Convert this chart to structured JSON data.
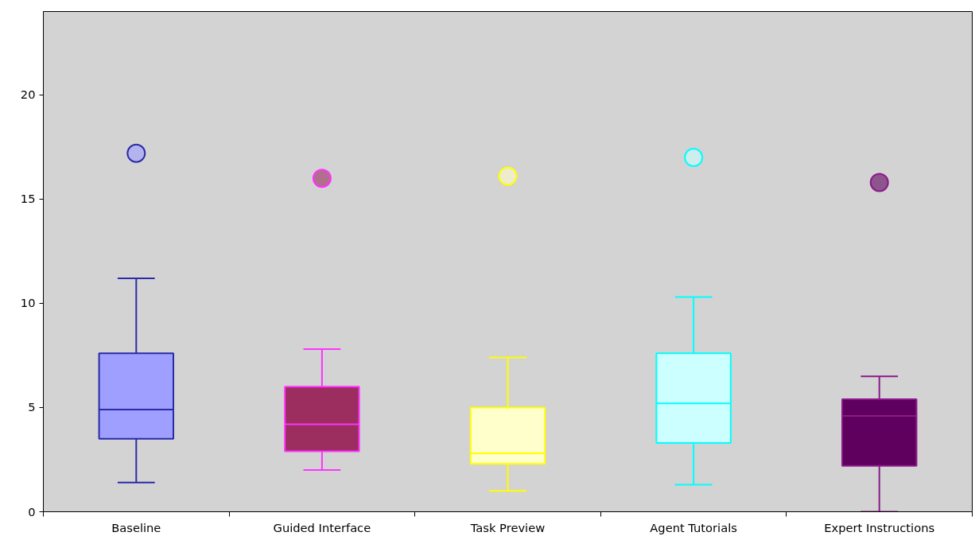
{
  "chart_data": {
    "type": "box",
    "categories": [
      "Baseline",
      "Guided Interface",
      "Task Preview",
      "Agent Tutorials",
      "Expert Instructions"
    ],
    "ylim": [
      0,
      24
    ],
    "yticks": [
      0,
      5,
      10,
      15,
      20
    ],
    "grid": false,
    "series": [
      {
        "color": "#2b2ba8",
        "colors": [
          "#9f9fff",
          null,
          null,
          null,
          null
        ],
        "boxes": [
          {
            "low": 1.4,
            "q1": 3.5,
            "median": 4.9,
            "q3": 7.6,
            "high": 11.2,
            "outliers": [
              17.2
            ]
          },
          null,
          null,
          null,
          null
        ]
      },
      {
        "color": "#ff33ff",
        "colors": [
          null,
          "#9b2d5f",
          null,
          null,
          null
        ],
        "boxes": [
          null,
          {
            "low": 2.0,
            "q1": 2.9,
            "median": 4.2,
            "q3": 6.0,
            "high": 7.8,
            "outliers": [
              16.0
            ]
          },
          null,
          null,
          null
        ]
      },
      {
        "color": "#ffff00",
        "colors": [
          null,
          null,
          "#ffffcc",
          null,
          null
        ],
        "boxes": [
          null,
          null,
          {
            "low": 1.0,
            "q1": 2.3,
            "median": 2.8,
            "q3": 5.0,
            "high": 7.4,
            "outliers": [
              16.1
            ]
          },
          null,
          null
        ]
      },
      {
        "color": "#00ffff",
        "colors": [
          null,
          null,
          null,
          "#ccffff",
          null
        ],
        "boxes": [
          null,
          null,
          null,
          {
            "low": 1.3,
            "q1": 3.3,
            "median": 5.2,
            "q3": 7.6,
            "high": 10.3,
            "outliers": [
              17.0
            ]
          },
          null
        ]
      },
      {
        "color": "#8b1a8b",
        "colors": [
          null,
          null,
          null,
          null,
          "#5f005f"
        ],
        "boxes": [
          null,
          null,
          null,
          null,
          {
            "low": 0.0,
            "q1": 2.2,
            "median": 4.6,
            "q3": 5.4,
            "high": 6.5,
            "outliers": [
              15.8
            ]
          }
        ]
      }
    ]
  }
}
